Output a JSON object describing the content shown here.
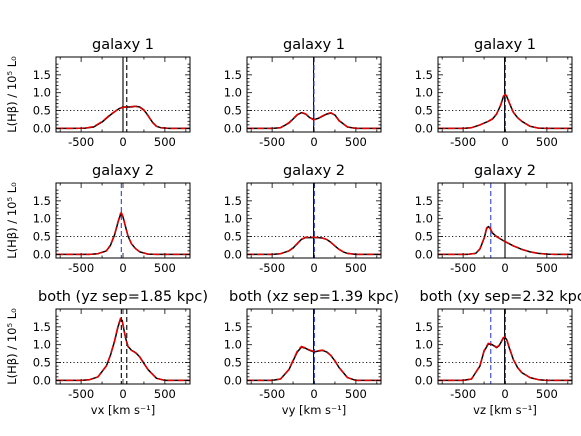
{
  "chart_data": [
    {
      "type": "line",
      "title": "galaxy 1",
      "ylabel": "L(Hβ) / 10⁵ L₀",
      "xlabel": "",
      "xlim": [
        -800,
        800
      ],
      "ylim": [
        -0.1,
        2.0
      ],
      "xticks": [
        -500,
        0,
        500
      ],
      "yticks": [
        0.0,
        0.5,
        1.0,
        1.5
      ],
      "hline": 0.5,
      "vlines": [
        {
          "x": 0,
          "style": "solid",
          "color": "#000000"
        },
        {
          "x": 45,
          "style": "dashed",
          "color": "#000000"
        }
      ],
      "series": [
        {
          "color": "#000000",
          "x": [
            -800,
            -600,
            -450,
            -350,
            -250,
            -150,
            -50,
            0,
            50,
            100,
            150,
            200,
            250,
            300,
            350,
            400,
            450,
            550,
            650,
            800
          ],
          "y": [
            0.0,
            0.0,
            0.01,
            0.04,
            0.18,
            0.38,
            0.55,
            0.6,
            0.6,
            0.6,
            0.62,
            0.6,
            0.52,
            0.36,
            0.18,
            0.06,
            0.02,
            0.0,
            0.0,
            0.0
          ]
        },
        {
          "color": "#e00000",
          "x": [
            -800,
            -600,
            -450,
            -350,
            -250,
            -150,
            -50,
            0,
            50,
            100,
            150,
            200,
            250,
            300,
            350,
            400,
            450,
            550,
            650,
            800
          ],
          "y": [
            0.0,
            0.0,
            0.01,
            0.05,
            0.19,
            0.39,
            0.55,
            0.59,
            0.6,
            0.61,
            0.62,
            0.59,
            0.51,
            0.35,
            0.17,
            0.06,
            0.02,
            0.0,
            0.0,
            0.0
          ]
        }
      ]
    },
    {
      "type": "line",
      "title": "galaxy 1",
      "xlabel": "",
      "xlim": [
        -800,
        800
      ],
      "ylim": [
        -0.1,
        2.0
      ],
      "xticks": [
        -500,
        0,
        500
      ],
      "yticks": [
        0.0,
        0.5,
        1.0,
        1.5
      ],
      "hline": 0.5,
      "vlines": [
        {
          "x": -5,
          "style": "solid",
          "color": "#000000"
        },
        {
          "x": 0,
          "style": "dashed",
          "color": "#3344cc"
        }
      ],
      "series": [
        {
          "color": "#000000",
          "x": [
            -800,
            -500,
            -400,
            -300,
            -200,
            -150,
            -100,
            -50,
            0,
            50,
            100,
            150,
            200,
            250,
            300,
            400,
            500,
            800
          ],
          "y": [
            0.0,
            0.0,
            0.02,
            0.15,
            0.38,
            0.44,
            0.4,
            0.3,
            0.25,
            0.28,
            0.34,
            0.4,
            0.43,
            0.38,
            0.22,
            0.04,
            0.0,
            0.0
          ]
        },
        {
          "color": "#e00000",
          "x": [
            -800,
            -500,
            -400,
            -300,
            -200,
            -150,
            -100,
            -50,
            0,
            50,
            100,
            150,
            200,
            250,
            300,
            400,
            500,
            800
          ],
          "y": [
            0.0,
            0.0,
            0.02,
            0.16,
            0.39,
            0.45,
            0.41,
            0.3,
            0.24,
            0.28,
            0.35,
            0.41,
            0.44,
            0.37,
            0.21,
            0.04,
            0.0,
            0.0
          ]
        }
      ]
    },
    {
      "type": "line",
      "title": "galaxy 1",
      "xlabel": "",
      "xlim": [
        -800,
        800
      ],
      "ylim": [
        -0.1,
        2.0
      ],
      "xticks": [
        -500,
        0,
        500
      ],
      "yticks": [
        0.0,
        0.5,
        1.0,
        1.5
      ],
      "hline": 0.5,
      "vlines": [
        {
          "x": -5,
          "style": "solid",
          "color": "#000000"
        },
        {
          "x": 5,
          "style": "dashed",
          "color": "#3344cc"
        }
      ],
      "series": [
        {
          "color": "#000000",
          "x": [
            -800,
            -500,
            -400,
            -300,
            -200,
            -150,
            -100,
            -50,
            -20,
            0,
            20,
            50,
            100,
            150,
            200,
            300,
            400,
            500,
            800
          ],
          "y": [
            0.0,
            0.0,
            0.02,
            0.1,
            0.2,
            0.26,
            0.4,
            0.66,
            0.88,
            0.93,
            0.9,
            0.72,
            0.45,
            0.3,
            0.2,
            0.06,
            0.01,
            0.0,
            0.0
          ]
        },
        {
          "color": "#e00000",
          "x": [
            -800,
            -500,
            -400,
            -300,
            -200,
            -150,
            -100,
            -50,
            -20,
            0,
            20,
            50,
            100,
            150,
            200,
            300,
            400,
            500,
            800
          ],
          "y": [
            0.0,
            0.0,
            0.02,
            0.1,
            0.2,
            0.27,
            0.41,
            0.67,
            0.9,
            0.95,
            0.92,
            0.73,
            0.45,
            0.3,
            0.2,
            0.06,
            0.01,
            0.0,
            0.0
          ]
        }
      ]
    },
    {
      "type": "line",
      "title": "galaxy 2",
      "ylabel": "L(Hβ) / 10⁵ L₀",
      "xlabel": "",
      "xlim": [
        -800,
        800
      ],
      "ylim": [
        -0.1,
        2.0
      ],
      "xticks": [
        -500,
        0,
        500
      ],
      "yticks": [
        0.0,
        0.5,
        1.0,
        1.5
      ],
      "hline": 0.5,
      "vlines": [
        {
          "x": -20,
          "style": "dashed",
          "color": "#3344cc"
        }
      ],
      "series": [
        {
          "color": "#000000",
          "x": [
            -800,
            -400,
            -300,
            -200,
            -150,
            -100,
            -60,
            -30,
            -20,
            0,
            30,
            60,
            100,
            150,
            200,
            300,
            400,
            800
          ],
          "y": [
            0.0,
            0.0,
            0.02,
            0.1,
            0.25,
            0.55,
            0.9,
            1.12,
            1.15,
            1.05,
            0.78,
            0.52,
            0.3,
            0.16,
            0.07,
            0.01,
            0.0,
            0.0
          ]
        },
        {
          "color": "#e00000",
          "x": [
            -800,
            -400,
            -300,
            -200,
            -150,
            -100,
            -60,
            -30,
            -20,
            0,
            30,
            60,
            100,
            150,
            200,
            300,
            400,
            800
          ],
          "y": [
            0.0,
            0.0,
            0.02,
            0.1,
            0.26,
            0.56,
            0.92,
            1.15,
            1.17,
            1.06,
            0.78,
            0.52,
            0.3,
            0.16,
            0.07,
            0.01,
            0.0,
            0.0
          ]
        }
      ]
    },
    {
      "type": "line",
      "title": "galaxy 2",
      "xlabel": "",
      "xlim": [
        -800,
        800
      ],
      "ylim": [
        -0.1,
        2.0
      ],
      "xticks": [
        -500,
        0,
        500
      ],
      "yticks": [
        0.0,
        0.5,
        1.0,
        1.5
      ],
      "hline": 0.5,
      "vlines": [
        {
          "x": -5,
          "style": "solid",
          "color": "#000000"
        },
        {
          "x": 5,
          "style": "dashed",
          "color": "#3344cc"
        }
      ],
      "series": [
        {
          "color": "#000000",
          "x": [
            -800,
            -500,
            -400,
            -300,
            -250,
            -200,
            -150,
            -100,
            -50,
            0,
            50,
            100,
            150,
            200,
            250,
            300,
            350,
            400,
            500,
            800
          ],
          "y": [
            0.0,
            0.0,
            0.02,
            0.1,
            0.18,
            0.3,
            0.42,
            0.47,
            0.47,
            0.47,
            0.47,
            0.46,
            0.42,
            0.34,
            0.24,
            0.14,
            0.07,
            0.03,
            0.0,
            0.0
          ]
        },
        {
          "color": "#e00000",
          "x": [
            -800,
            -500,
            -400,
            -300,
            -250,
            -200,
            -150,
            -100,
            -50,
            0,
            50,
            100,
            150,
            200,
            250,
            300,
            350,
            400,
            500,
            800
          ],
          "y": [
            0.0,
            0.0,
            0.02,
            0.1,
            0.19,
            0.31,
            0.43,
            0.48,
            0.48,
            0.48,
            0.47,
            0.46,
            0.42,
            0.34,
            0.24,
            0.14,
            0.07,
            0.03,
            0.0,
            0.0
          ]
        }
      ]
    },
    {
      "type": "line",
      "title": "galaxy 2",
      "xlabel": "",
      "xlim": [
        -800,
        800
      ],
      "ylim": [
        -0.1,
        2.0
      ],
      "xticks": [
        -500,
        0,
        500
      ],
      "yticks": [
        0.0,
        0.5,
        1.0,
        1.5
      ],
      "hline": 0.5,
      "vlines": [
        {
          "x": 0,
          "style": "solid",
          "color": "#000000"
        },
        {
          "x": -170,
          "style": "dashed",
          "color": "#3344cc"
        }
      ],
      "series": [
        {
          "color": "#000000",
          "x": [
            -800,
            -450,
            -350,
            -300,
            -250,
            -220,
            -200,
            -180,
            -150,
            -100,
            -50,
            0,
            50,
            100,
            150,
            200,
            300,
            400,
            500,
            600,
            800
          ],
          "y": [
            0.0,
            0.0,
            0.03,
            0.15,
            0.45,
            0.72,
            0.78,
            0.74,
            0.6,
            0.5,
            0.43,
            0.36,
            0.3,
            0.24,
            0.19,
            0.14,
            0.07,
            0.03,
            0.01,
            0.0,
            0.0
          ]
        },
        {
          "color": "#e00000",
          "x": [
            -800,
            -450,
            -350,
            -300,
            -250,
            -220,
            -200,
            -180,
            -150,
            -100,
            -50,
            0,
            50,
            100,
            150,
            200,
            300,
            400,
            500,
            600,
            800
          ],
          "y": [
            0.0,
            0.0,
            0.03,
            0.16,
            0.46,
            0.74,
            0.8,
            0.75,
            0.6,
            0.5,
            0.43,
            0.36,
            0.3,
            0.24,
            0.19,
            0.14,
            0.07,
            0.03,
            0.01,
            0.0,
            0.0
          ]
        }
      ]
    },
    {
      "type": "line",
      "title": "both (yz sep=1.85 kpc)",
      "ylabel": "L(Hβ) / 10⁵ L₀",
      "xlabel": "vx [km s⁻¹]",
      "xlim": [
        -800,
        800
      ],
      "ylim": [
        -0.1,
        2.0
      ],
      "xticks": [
        -500,
        0,
        500
      ],
      "yticks": [
        0.0,
        0.5,
        1.0,
        1.5
      ],
      "hline": 0.5,
      "vlines": [
        {
          "x": -20,
          "style": "dashed",
          "color": "#000000"
        },
        {
          "x": 45,
          "style": "dashed",
          "color": "#000000"
        }
      ],
      "series": [
        {
          "color": "#000000",
          "x": [
            -800,
            -500,
            -400,
            -300,
            -200,
            -150,
            -100,
            -60,
            -30,
            -10,
            0,
            30,
            60,
            100,
            150,
            200,
            250,
            300,
            400,
            500,
            800
          ],
          "y": [
            0.0,
            0.0,
            0.02,
            0.1,
            0.4,
            0.7,
            1.1,
            1.5,
            1.72,
            1.68,
            1.55,
            1.2,
            0.95,
            0.85,
            0.78,
            0.66,
            0.48,
            0.3,
            0.06,
            0.0,
            0.0
          ]
        },
        {
          "color": "#e00000",
          "x": [
            -800,
            -500,
            -400,
            -300,
            -200,
            -150,
            -100,
            -60,
            -30,
            -10,
            0,
            30,
            60,
            100,
            150,
            200,
            250,
            300,
            400,
            500,
            800
          ],
          "y": [
            0.0,
            0.0,
            0.02,
            0.1,
            0.41,
            0.71,
            1.12,
            1.52,
            1.74,
            1.7,
            1.56,
            1.2,
            0.95,
            0.84,
            0.77,
            0.65,
            0.47,
            0.3,
            0.06,
            0.0,
            0.0
          ]
        }
      ]
    },
    {
      "type": "line",
      "title": "both (xz sep=1.39 kpc)",
      "xlabel": "vy [km s⁻¹]",
      "xlim": [
        -800,
        800
      ],
      "ylim": [
        -0.1,
        2.0
      ],
      "xticks": [
        -500,
        0,
        500
      ],
      "yticks": [
        0.0,
        0.5,
        1.0,
        1.5
      ],
      "hline": 0.5,
      "vlines": [
        {
          "x": -5,
          "style": "solid",
          "color": "#000000"
        },
        {
          "x": 5,
          "style": "dashed",
          "color": "#3344cc"
        }
      ],
      "series": [
        {
          "color": "#000000",
          "x": [
            -800,
            -500,
            -400,
            -300,
            -200,
            -150,
            -100,
            -50,
            0,
            50,
            100,
            150,
            200,
            250,
            300,
            400,
            500,
            800
          ],
          "y": [
            0.0,
            0.0,
            0.04,
            0.3,
            0.8,
            0.93,
            0.9,
            0.84,
            0.8,
            0.82,
            0.84,
            0.8,
            0.7,
            0.55,
            0.36,
            0.08,
            0.0,
            0.0
          ]
        },
        {
          "color": "#e00000",
          "x": [
            -800,
            -500,
            -400,
            -300,
            -200,
            -150,
            -100,
            -50,
            0,
            50,
            100,
            150,
            200,
            250,
            300,
            400,
            500,
            800
          ],
          "y": [
            0.0,
            0.0,
            0.04,
            0.31,
            0.82,
            0.95,
            0.91,
            0.85,
            0.81,
            0.83,
            0.85,
            0.81,
            0.7,
            0.55,
            0.36,
            0.08,
            0.0,
            0.0
          ]
        }
      ]
    },
    {
      "type": "line",
      "title": "both (xy sep=2.32 kpc)",
      "xlabel": "vz [km s⁻¹]",
      "xlim": [
        -800,
        800
      ],
      "ylim": [
        -0.1,
        2.0
      ],
      "xticks": [
        -500,
        0,
        500
      ],
      "yticks": [
        0.0,
        0.5,
        1.0,
        1.5
      ],
      "hline": 0.5,
      "vlines": [
        {
          "x": -170,
          "style": "dashed",
          "color": "#3344cc"
        },
        {
          "x": -5,
          "style": "solid",
          "color": "#000000"
        },
        {
          "x": 5,
          "style": "dashed",
          "color": "#3344cc"
        }
      ],
      "series": [
        {
          "color": "#000000",
          "x": [
            -800,
            -500,
            -400,
            -300,
            -250,
            -200,
            -150,
            -100,
            -70,
            -50,
            -20,
            0,
            20,
            50,
            100,
            150,
            200,
            300,
            400,
            500,
            800
          ],
          "y": [
            0.0,
            0.0,
            0.04,
            0.4,
            0.82,
            1.02,
            1.0,
            0.92,
            0.97,
            1.06,
            1.18,
            1.2,
            1.14,
            0.92,
            0.58,
            0.36,
            0.22,
            0.08,
            0.02,
            0.0,
            0.0
          ]
        },
        {
          "color": "#e00000",
          "x": [
            -800,
            -500,
            -400,
            -300,
            -250,
            -200,
            -150,
            -100,
            -70,
            -50,
            -20,
            0,
            20,
            50,
            100,
            150,
            200,
            300,
            400,
            500,
            800
          ],
          "y": [
            0.0,
            0.0,
            0.04,
            0.41,
            0.84,
            1.04,
            1.01,
            0.93,
            0.98,
            1.07,
            1.2,
            1.22,
            1.16,
            0.93,
            0.58,
            0.36,
            0.22,
            0.08,
            0.02,
            0.0,
            0.0
          ]
        }
      ]
    }
  ]
}
